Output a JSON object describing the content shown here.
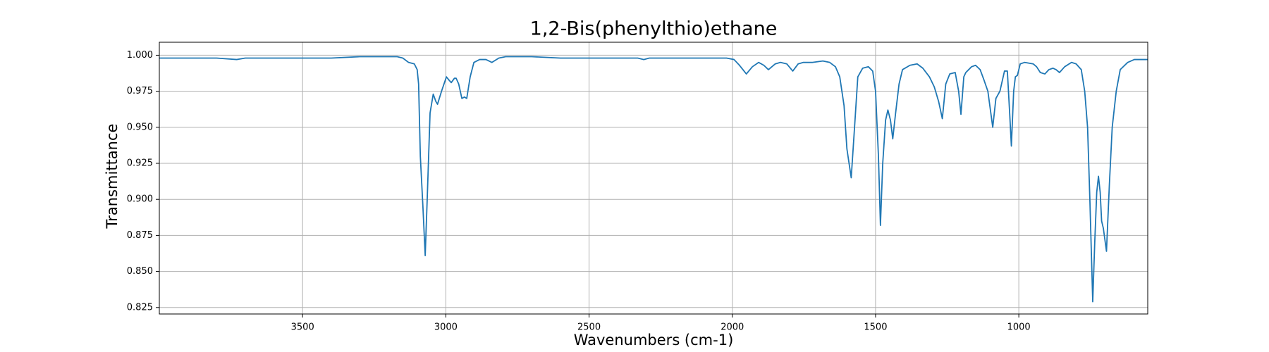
{
  "chart_data": {
    "type": "line",
    "title": "1,2-Bis(phenylthio)ethane",
    "x_label": "Wavenumbers (cm-1)",
    "y_label": "Transmittance",
    "color": "#1f77b4",
    "grid": true,
    "x_reversed": true,
    "xlim": [
      4000,
      550
    ],
    "ylim": [
      0.8205,
      1.009
    ],
    "xticks": [
      3500,
      3000,
      2500,
      2000,
      1500,
      1000
    ],
    "yticks": [
      0.825,
      {
        "value": 0.85,
        "label": "0.850"
      },
      0.875,
      {
        "value": 0.9,
        "label": "0.900"
      },
      0.925,
      {
        "value": 0.95,
        "label": "0.950"
      },
      0.975,
      {
        "value": 1,
        "label": "1.000"
      }
    ],
    "x": [
      4000,
      3900,
      3800,
      3730,
      3700,
      3600,
      3500,
      3400,
      3300,
      3200,
      3170,
      3150,
      3130,
      3110,
      3100,
      3095,
      3089,
      3080,
      3072,
      3065,
      3055,
      3044,
      3035,
      3029,
      3015,
      2998,
      2990,
      2981,
      2970,
      2964,
      2955,
      2944,
      2935,
      2927,
      2915,
      2902,
      2882,
      2860,
      2839,
      2815,
      2791,
      2700,
      2600,
      2500,
      2400,
      2330,
      2309,
      2290,
      2200,
      2100,
      2020,
      1994,
      1975,
      1951,
      1930,
      1908,
      1890,
      1874,
      1850,
      1832,
      1810,
      1789,
      1770,
      1752,
      1720,
      1684,
      1660,
      1640,
      1625,
      1610,
      1600,
      1585,
      1575,
      1562,
      1545,
      1525,
      1510,
      1500,
      1490,
      1483,
      1475,
      1465,
      1457,
      1448,
      1440,
      1430,
      1418,
      1406,
      1380,
      1355,
      1335,
      1312,
      1295,
      1280,
      1267,
      1255,
      1241,
      1222,
      1210,
      1202,
      1192,
      1185,
      1165,
      1151,
      1135,
      1122,
      1108,
      1091,
      1080,
      1066,
      1050,
      1040,
      1032,
      1026,
      1018,
      1012,
      1005,
      995,
      980,
      950,
      938,
      925,
      909,
      895,
      881,
      870,
      858,
      840,
      816,
      800,
      782,
      770,
      760,
      752,
      742,
      735,
      728,
      722,
      716,
      711,
      705,
      694,
      684,
      674,
      660,
      646,
      620,
      597,
      570,
      550
    ],
    "values": [
      0.998,
      0.998,
      0.998,
      0.997,
      0.998,
      0.998,
      0.998,
      0.998,
      0.999,
      0.999,
      0.999,
      0.998,
      0.995,
      0.994,
      0.99,
      0.98,
      0.93,
      0.895,
      0.861,
      0.9,
      0.96,
      0.973,
      0.968,
      0.966,
      0.975,
      0.985,
      0.983,
      0.981,
      0.984,
      0.984,
      0.98,
      0.97,
      0.971,
      0.97,
      0.985,
      0.995,
      0.997,
      0.997,
      0.995,
      0.998,
      0.999,
      0.999,
      0.998,
      0.998,
      0.998,
      0.998,
      0.997,
      0.998,
      0.998,
      0.998,
      0.998,
      0.997,
      0.993,
      0.987,
      0.992,
      0.995,
      0.993,
      0.99,
      0.994,
      0.995,
      0.994,
      0.989,
      0.994,
      0.995,
      0.995,
      0.996,
      0.995,
      0.992,
      0.985,
      0.965,
      0.935,
      0.915,
      0.945,
      0.985,
      0.991,
      0.992,
      0.989,
      0.975,
      0.93,
      0.882,
      0.925,
      0.955,
      0.962,
      0.955,
      0.942,
      0.96,
      0.98,
      0.99,
      0.993,
      0.994,
      0.991,
      0.985,
      0.978,
      0.968,
      0.956,
      0.98,
      0.987,
      0.988,
      0.975,
      0.959,
      0.985,
      0.988,
      0.992,
      0.993,
      0.99,
      0.983,
      0.975,
      0.95,
      0.97,
      0.975,
      0.989,
      0.989,
      0.96,
      0.937,
      0.975,
      0.985,
      0.986,
      0.994,
      0.995,
      0.994,
      0.992,
      0.988,
      0.987,
      0.99,
      0.991,
      0.99,
      0.988,
      0.992,
      0.995,
      0.994,
      0.99,
      0.975,
      0.95,
      0.9,
      0.829,
      0.87,
      0.905,
      0.916,
      0.905,
      0.885,
      0.88,
      0.864,
      0.91,
      0.95,
      0.975,
      0.99,
      0.995,
      0.997,
      0.997,
      0.997
    ]
  }
}
